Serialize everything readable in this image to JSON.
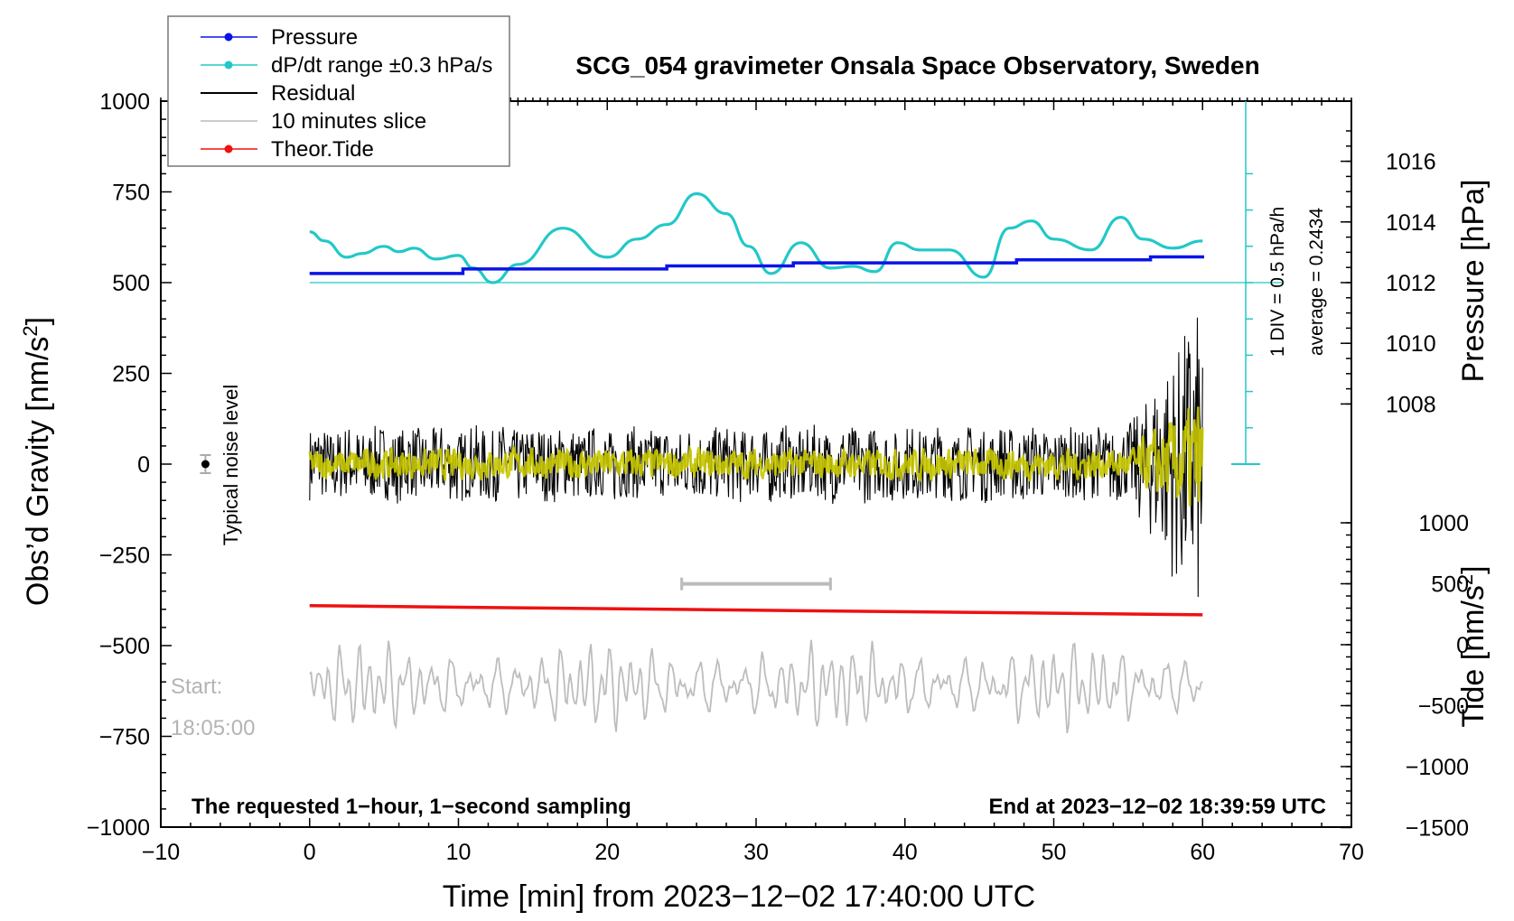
{
  "chart_data": {
    "type": "line",
    "title": "SCG_054 gravimeter Onsala Space Observatory, Sweden",
    "xlabel": "Time [min] from 2023−12−02 17:40:00 UTC",
    "ylabel_left": "Obs’d Gravity [nm/s²]",
    "ylabel_left_main": "Obs’d Gravity [nm/s",
    "ylabel_left_sup": "2",
    "ylabel_left_end": "]",
    "ylabel_right_top": "Pressure [hPa]",
    "ylabel_right_bottom": "Tide [nm/s²]",
    "ylabel_right_bottom_main": "Tide [nm/s",
    "ylabel_right_bottom_sup": "2",
    "ylabel_right_bottom_end": "]",
    "xlim": [
      -10,
      70
    ],
    "ylim_left": [
      -1000,
      1000
    ],
    "x_ticks": [
      "−10",
      "0",
      "10",
      "20",
      "30",
      "40",
      "50",
      "60",
      "70"
    ],
    "y_ticks_left": [
      "1000",
      "750",
      "500",
      "250",
      "0",
      "−250",
      "−500",
      "−750",
      "−1000"
    ],
    "pressure_ticks": [
      "1016",
      "1014",
      "1012",
      "1010",
      "1008"
    ],
    "tide_ticks": [
      "1000",
      "500",
      "0",
      "−500",
      "−1000",
      "−1500"
    ],
    "legend": [
      {
        "label": "Pressure",
        "color": "#0a14e6"
      },
      {
        "label": "dP/dt range ±0.3 hPa/s",
        "color": "#22c8c8"
      },
      {
        "label": "Residual",
        "color": "#000000"
      },
      {
        "label": "10 minutes slice",
        "color": "#bbbbbb"
      },
      {
        "label": "Theor.Tide",
        "color": "#ee1111"
      }
    ],
    "annotations": {
      "noise": "Typical noise level",
      "div": "1 DIV = 0.5 hPa/h",
      "average": "average = 0.2434",
      "start_label": "Start:",
      "start_time": "18:05:00",
      "bottom_left": "The requested 1−hour, 1−second sampling",
      "bottom_right": "End at 2023−12−02 18:39:59 UTC"
    },
    "series": [
      {
        "name": "Pressure",
        "unit": "hPa",
        "x": [
          0,
          10,
          10.3,
          24,
          32.5,
          47.5,
          56.5,
          60
        ],
        "values": [
          1012.3,
          1012.3,
          1012.45,
          1012.55,
          1012.65,
          1012.75,
          1012.85,
          1012.9
        ]
      },
      {
        "name": "dP/dt range ±0.3 hPa/s",
        "unit": "nm/s² (plot)",
        "x": [
          0,
          1,
          2.5,
          3.5,
          5,
          6,
          7,
          8.5,
          10,
          11,
          12.3,
          14,
          17,
          20,
          22,
          24,
          26,
          28,
          29.5,
          31,
          33,
          35,
          36.5,
          38,
          39.5,
          41,
          43,
          45.3,
          47,
          48.5,
          50,
          52.5,
          54.5,
          56,
          58,
          60
        ],
        "values": [
          640,
          615,
          570,
          580,
          600,
          585,
          595,
          565,
          575,
          540,
          500,
          550,
          650,
          570,
          620,
          660,
          745,
          690,
          600,
          525,
          610,
          540,
          545,
          530,
          610,
          590,
          590,
          515,
          650,
          670,
          620,
          590,
          680,
          620,
          595,
          615
        ]
      },
      {
        "name": "Residual",
        "unit": "nm/s²",
        "x": [
          0,
          60
        ],
        "envelope": [
          -280,
          420
        ]
      },
      {
        "name": "10 minutes slice",
        "unit": "nm/s² (plot)",
        "x_range": [
          25,
          35
        ],
        "baseline": -610
      },
      {
        "name": "Theor.Tide",
        "unit": "nm/s² (plot)",
        "x": [
          0,
          60
        ],
        "values": [
          -390,
          -415
        ]
      }
    ],
    "slice_marker": {
      "x_range": [
        25,
        35
      ],
      "y": -330
    },
    "noise_marker": {
      "x": -7,
      "y": 0
    }
  }
}
